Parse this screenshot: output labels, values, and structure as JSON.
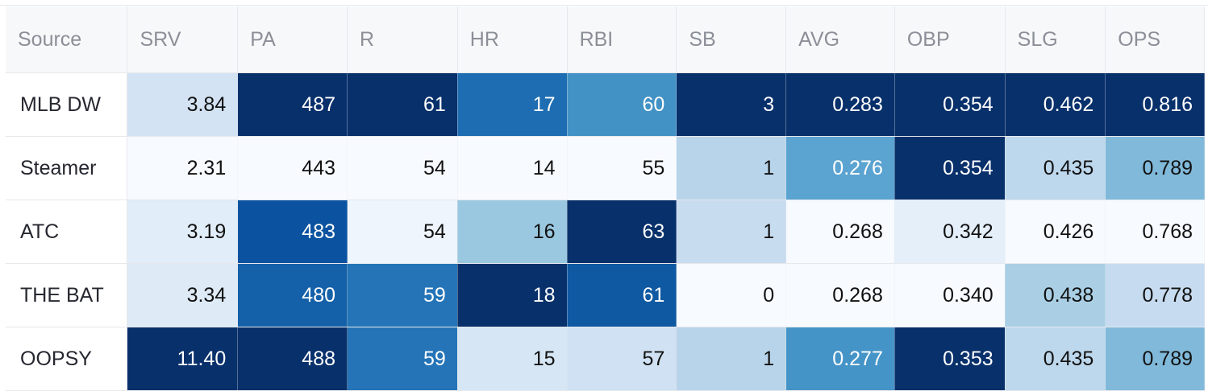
{
  "table": {
    "columns": [
      "Source",
      "SRV",
      "PA",
      "R",
      "HR",
      "RBI",
      "SB",
      "AVG",
      "OBP",
      "SLG",
      "OPS"
    ],
    "rows": [
      {
        "source": "MLB DW",
        "cells": [
          {
            "value": "3.84",
            "bg": "#d3e3f3"
          },
          {
            "value": "487",
            "bg": "#08306b"
          },
          {
            "value": "61",
            "bg": "#08306b"
          },
          {
            "value": "17",
            "bg": "#1e6db2"
          },
          {
            "value": "60",
            "bg": "#4292c6"
          },
          {
            "value": "3",
            "bg": "#08306b"
          },
          {
            "value": "0.283",
            "bg": "#08306b"
          },
          {
            "value": "0.354",
            "bg": "#08306b"
          },
          {
            "value": "0.462",
            "bg": "#08306b"
          },
          {
            "value": "0.816",
            "bg": "#08306b"
          }
        ]
      },
      {
        "source": "Steamer",
        "cells": [
          {
            "value": "2.31",
            "bg": "#f7fbff"
          },
          {
            "value": "443",
            "bg": "#f7fbff"
          },
          {
            "value": "54",
            "bg": "#f7fbff"
          },
          {
            "value": "14",
            "bg": "#f7fbff"
          },
          {
            "value": "55",
            "bg": "#f7fbff"
          },
          {
            "value": "1",
            "bg": "#b7d4ea"
          },
          {
            "value": "0.276",
            "bg": "#5ba3d0"
          },
          {
            "value": "0.354",
            "bg": "#08306b"
          },
          {
            "value": "0.435",
            "bg": "#bdd7ec"
          },
          {
            "value": "0.789",
            "bg": "#80b9da"
          }
        ]
      },
      {
        "source": "ATC",
        "cells": [
          {
            "value": "3.19",
            "bg": "#e1edf8"
          },
          {
            "value": "483",
            "bg": "#0b53a0"
          },
          {
            "value": "54",
            "bg": "#eef5fc"
          },
          {
            "value": "16",
            "bg": "#9ac8e0"
          },
          {
            "value": "63",
            "bg": "#08306b"
          },
          {
            "value": "1",
            "bg": "#c8dcf0"
          },
          {
            "value": "0.268",
            "bg": "#f7fbff"
          },
          {
            "value": "0.342",
            "bg": "#e4eff9"
          },
          {
            "value": "0.426",
            "bg": "#f7fbff"
          },
          {
            "value": "0.768",
            "bg": "#f7fbff"
          }
        ]
      },
      {
        "source": "THE BAT",
        "cells": [
          {
            "value": "3.34",
            "bg": "#deebf7"
          },
          {
            "value": "480",
            "bg": "#1561a9"
          },
          {
            "value": "59",
            "bg": "#2474b7"
          },
          {
            "value": "18",
            "bg": "#08306b"
          },
          {
            "value": "61",
            "bg": "#0e59a2"
          },
          {
            "value": "0",
            "bg": "#f7fbff"
          },
          {
            "value": "0.268",
            "bg": "#f7fbff"
          },
          {
            "value": "0.340",
            "bg": "#f7fbff"
          },
          {
            "value": "0.438",
            "bg": "#aacfe5"
          },
          {
            "value": "0.778",
            "bg": "#c6dbef"
          }
        ]
      },
      {
        "source": "OOPSY",
        "cells": [
          {
            "value": "11.40",
            "bg": "#08306b"
          },
          {
            "value": "488",
            "bg": "#08306b"
          },
          {
            "value": "59",
            "bg": "#2474b7"
          },
          {
            "value": "15",
            "bg": "#d6e6f4"
          },
          {
            "value": "57",
            "bg": "#cfe1f2"
          },
          {
            "value": "1",
            "bg": "#b7d4ea"
          },
          {
            "value": "0.277",
            "bg": "#4594c8"
          },
          {
            "value": "0.353",
            "bg": "#08306b"
          },
          {
            "value": "0.435",
            "bg": "#bdd7ec"
          },
          {
            "value": "0.789",
            "bg": "#80b9da"
          }
        ]
      }
    ]
  }
}
